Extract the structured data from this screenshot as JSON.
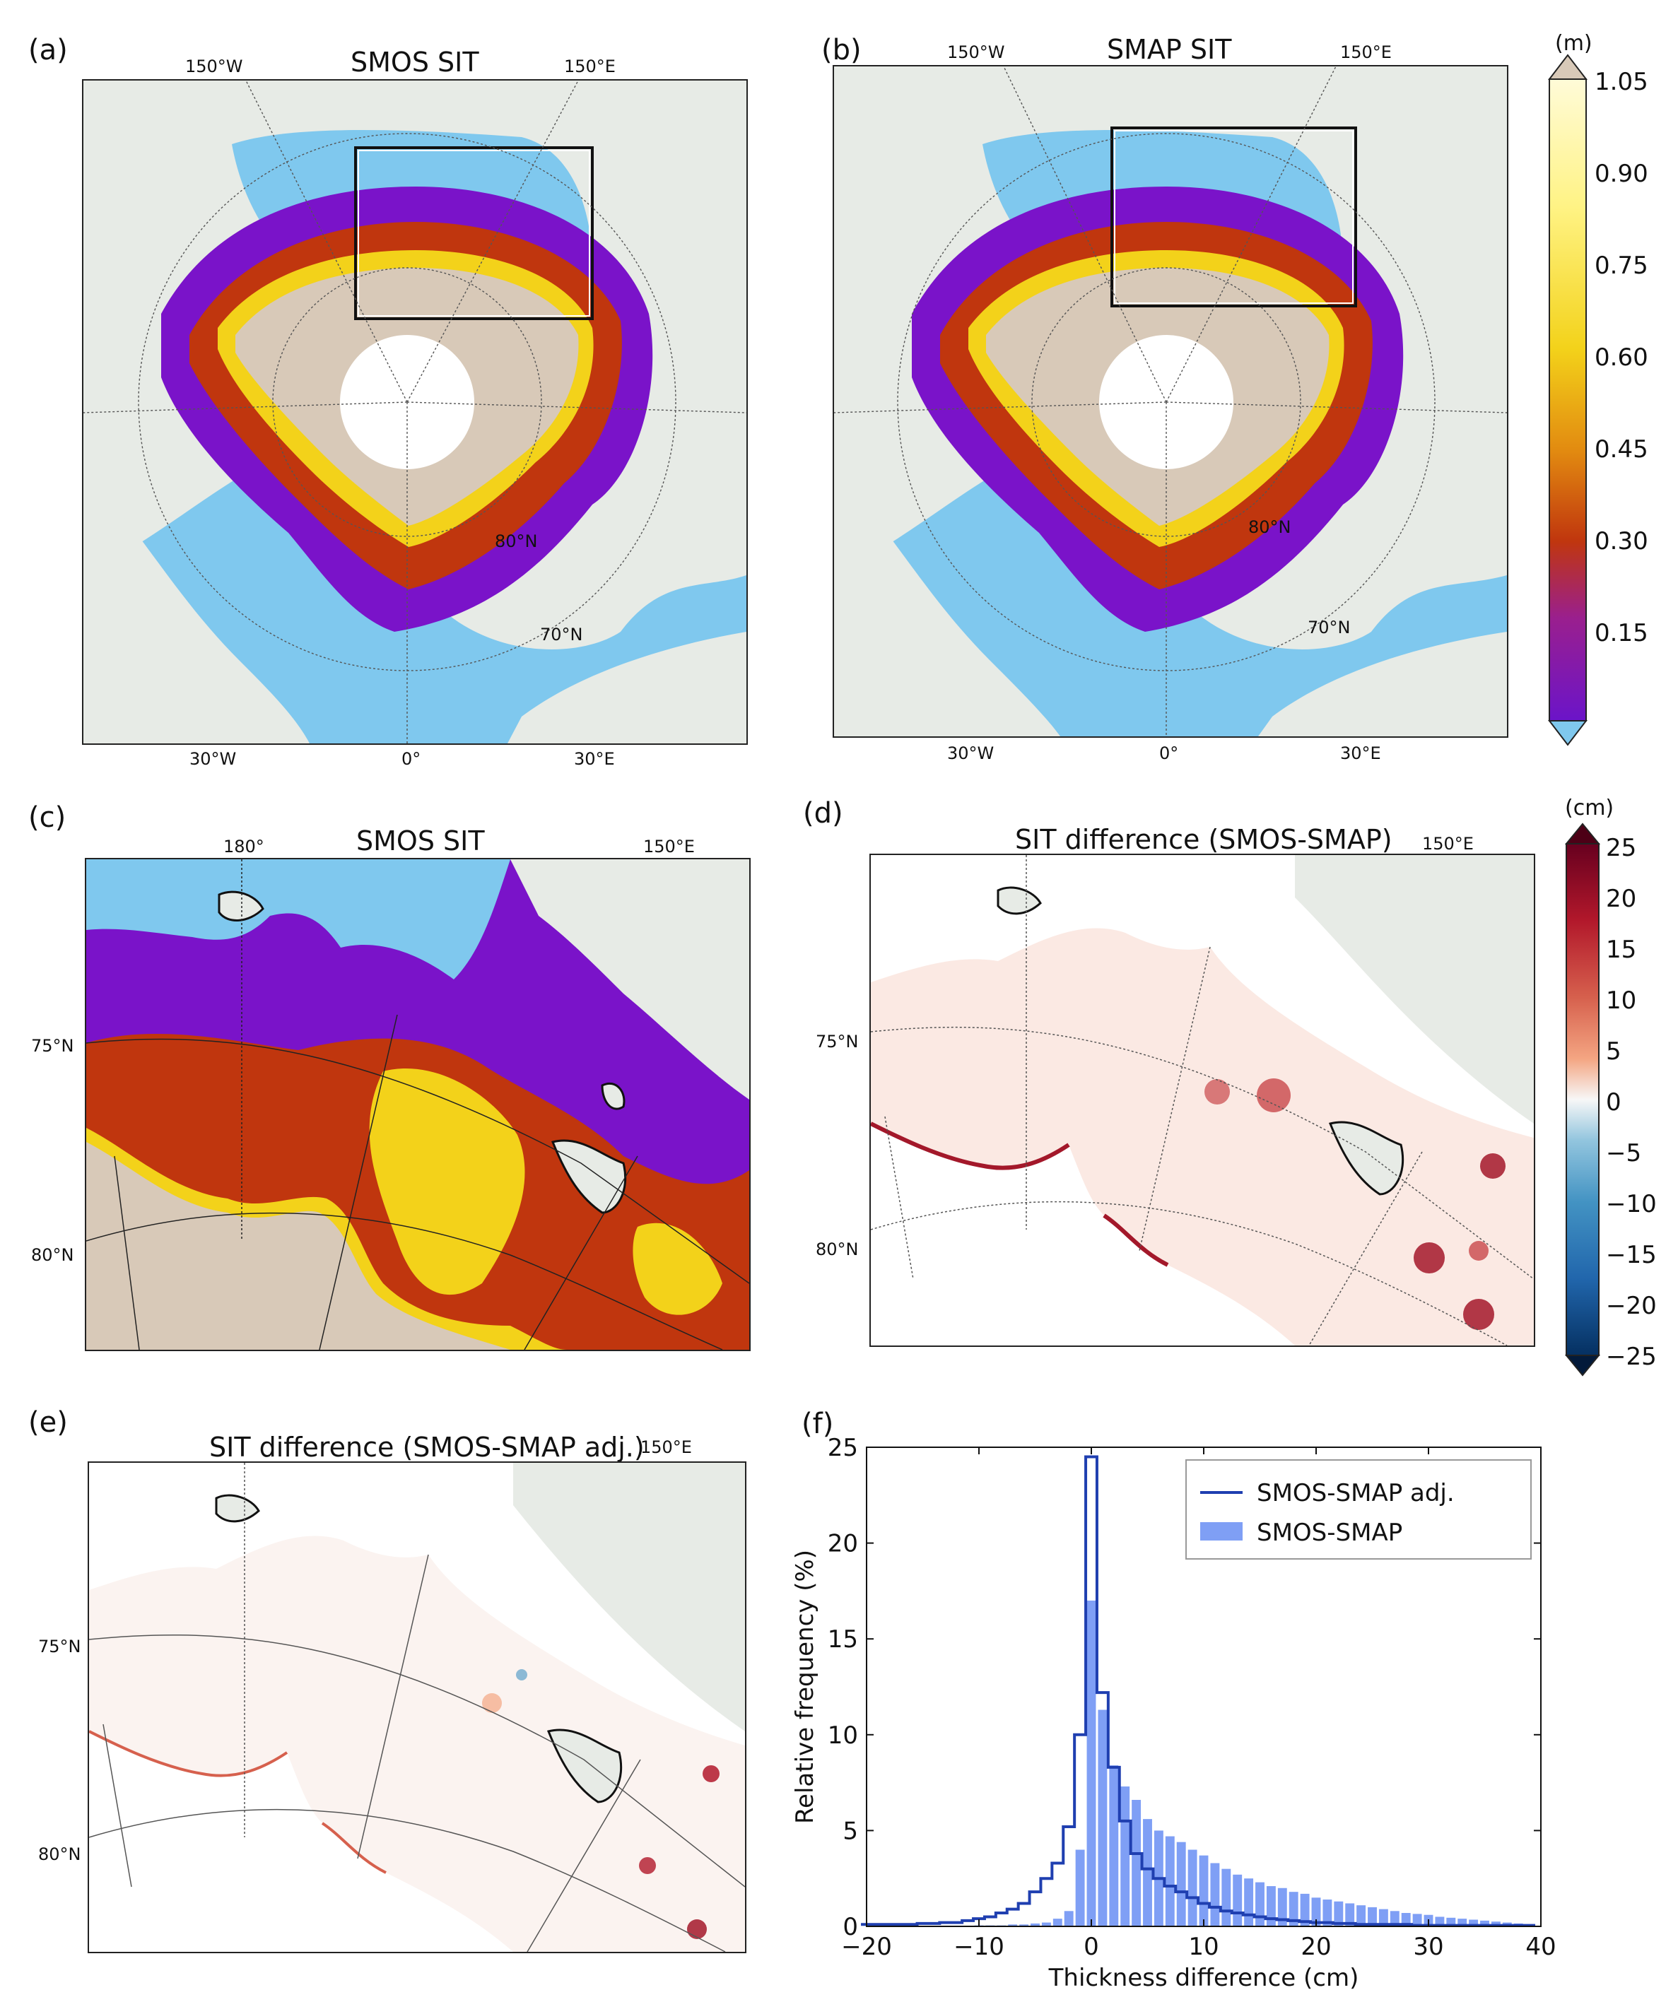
{
  "panel_a": {
    "label": "(a)",
    "title": "SMOS SIT",
    "lon_top_left": "150°W",
    "lon_top_right": "150°E",
    "lon_bottom": [
      "30°W",
      "0°",
      "30°E"
    ],
    "lat_labels": [
      "80°N",
      "70°N"
    ]
  },
  "panel_b": {
    "label": "(b)",
    "title": "SMAP SIT",
    "lon_top_left": "150°W",
    "lon_top_right": "150°E",
    "lon_bottom": [
      "30°W",
      "0°",
      "30°E"
    ],
    "lat_labels": [
      "80°N",
      "70°N"
    ]
  },
  "panel_c": {
    "label": "(c)",
    "title": "SMOS SIT",
    "lon_top_left": "180°",
    "lon_top_right": "150°E",
    "lat_labels": [
      "75°N",
      "80°N"
    ]
  },
  "panel_d": {
    "label": "(d)",
    "title": "SIT difference (SMOS-SMAP)",
    "lon_top_right": "150°E",
    "lat_labels": [
      "75°N",
      "80°N"
    ]
  },
  "panel_e": {
    "label": "(e)",
    "title": "SIT difference (SMOS-SMAP adj.)",
    "lon_top_right": "150°E",
    "lat_labels": [
      "75°N",
      "80°N"
    ]
  },
  "panel_f": {
    "label": "(f)"
  },
  "colorbar_thickness": {
    "unit": "(m)",
    "ticks": [
      "1.05",
      "0.90",
      "0.75",
      "0.60",
      "0.45",
      "0.30",
      "0.15"
    ],
    "over_color": "#d8c9b8",
    "under_color": "#7fc8ee"
  },
  "colorbar_difference": {
    "unit": "(cm)",
    "ticks": [
      "25",
      "20",
      "15",
      "10",
      "5",
      "0",
      "−5",
      "−10",
      "−15",
      "−20",
      "−25"
    ]
  },
  "colors": {
    "land": "#e7ebe6",
    "ocean": "#7fc8ee",
    "thick_ice": "#d8c9b8",
    "hole": "#ffffff",
    "series_line": "#1f3fb0",
    "series_bar": "#7f9ff5"
  },
  "chart_data": {
    "type": "bar",
    "xlabel": "Thickness difference (cm)",
    "ylabel": "Relative frequency (%)",
    "xlim": [
      -20,
      40
    ],
    "ylim": [
      0,
      25
    ],
    "xticks": [
      -20,
      -10,
      0,
      10,
      20,
      30,
      40
    ],
    "yticks": [
      0,
      5,
      10,
      15,
      20,
      25
    ],
    "bin_width": 1,
    "legend_position": "top-right",
    "x": [
      -20,
      -19,
      -18,
      -17,
      -16,
      -15,
      -14,
      -13,
      -12,
      -11,
      -10,
      -9,
      -8,
      -7,
      -6,
      -5,
      -4,
      -3,
      -2,
      -1,
      0,
      1,
      2,
      3,
      4,
      5,
      6,
      7,
      8,
      9,
      10,
      11,
      12,
      13,
      14,
      15,
      16,
      17,
      18,
      19,
      20,
      21,
      22,
      23,
      24,
      25,
      26,
      27,
      28,
      29,
      30,
      31,
      32,
      33,
      34,
      35,
      36,
      37,
      38,
      39
    ],
    "series": [
      {
        "name": "SMOS-SMAP adj.",
        "style": "step",
        "values": [
          0.1,
          0.1,
          0.1,
          0.1,
          0.1,
          0.15,
          0.15,
          0.2,
          0.2,
          0.3,
          0.4,
          0.5,
          0.7,
          0.9,
          1.2,
          1.8,
          2.5,
          3.3,
          5.2,
          10.0,
          24.5,
          12.2,
          8.3,
          5.5,
          3.8,
          3.0,
          2.5,
          2.1,
          1.8,
          1.5,
          1.2,
          1.0,
          0.8,
          0.7,
          0.6,
          0.5,
          0.4,
          0.35,
          0.3,
          0.25,
          0.2,
          0.2,
          0.15,
          0.15,
          0.1,
          0.1,
          0.1,
          0.1,
          0.1,
          0.05,
          0.05,
          0.05,
          0.05,
          0.05,
          0.05,
          0.05,
          0.05,
          0.05,
          0.05,
          0.05
        ]
      },
      {
        "name": "SMOS-SMAP",
        "style": "bar",
        "values": [
          0,
          0,
          0,
          0,
          0,
          0,
          0,
          0,
          0,
          0,
          0.05,
          0.05,
          0.05,
          0.1,
          0.1,
          0.15,
          0.2,
          0.4,
          0.8,
          4.0,
          17.0,
          11.3,
          8.4,
          7.3,
          6.6,
          5.6,
          5.0,
          4.7,
          4.4,
          4.0,
          3.7,
          3.3,
          3.0,
          2.7,
          2.5,
          2.3,
          2.1,
          2.0,
          1.8,
          1.7,
          1.5,
          1.4,
          1.3,
          1.2,
          1.1,
          1.0,
          0.9,
          0.8,
          0.7,
          0.65,
          0.6,
          0.5,
          0.45,
          0.4,
          0.35,
          0.3,
          0.25,
          0.2,
          0.15,
          0.1
        ]
      }
    ]
  }
}
